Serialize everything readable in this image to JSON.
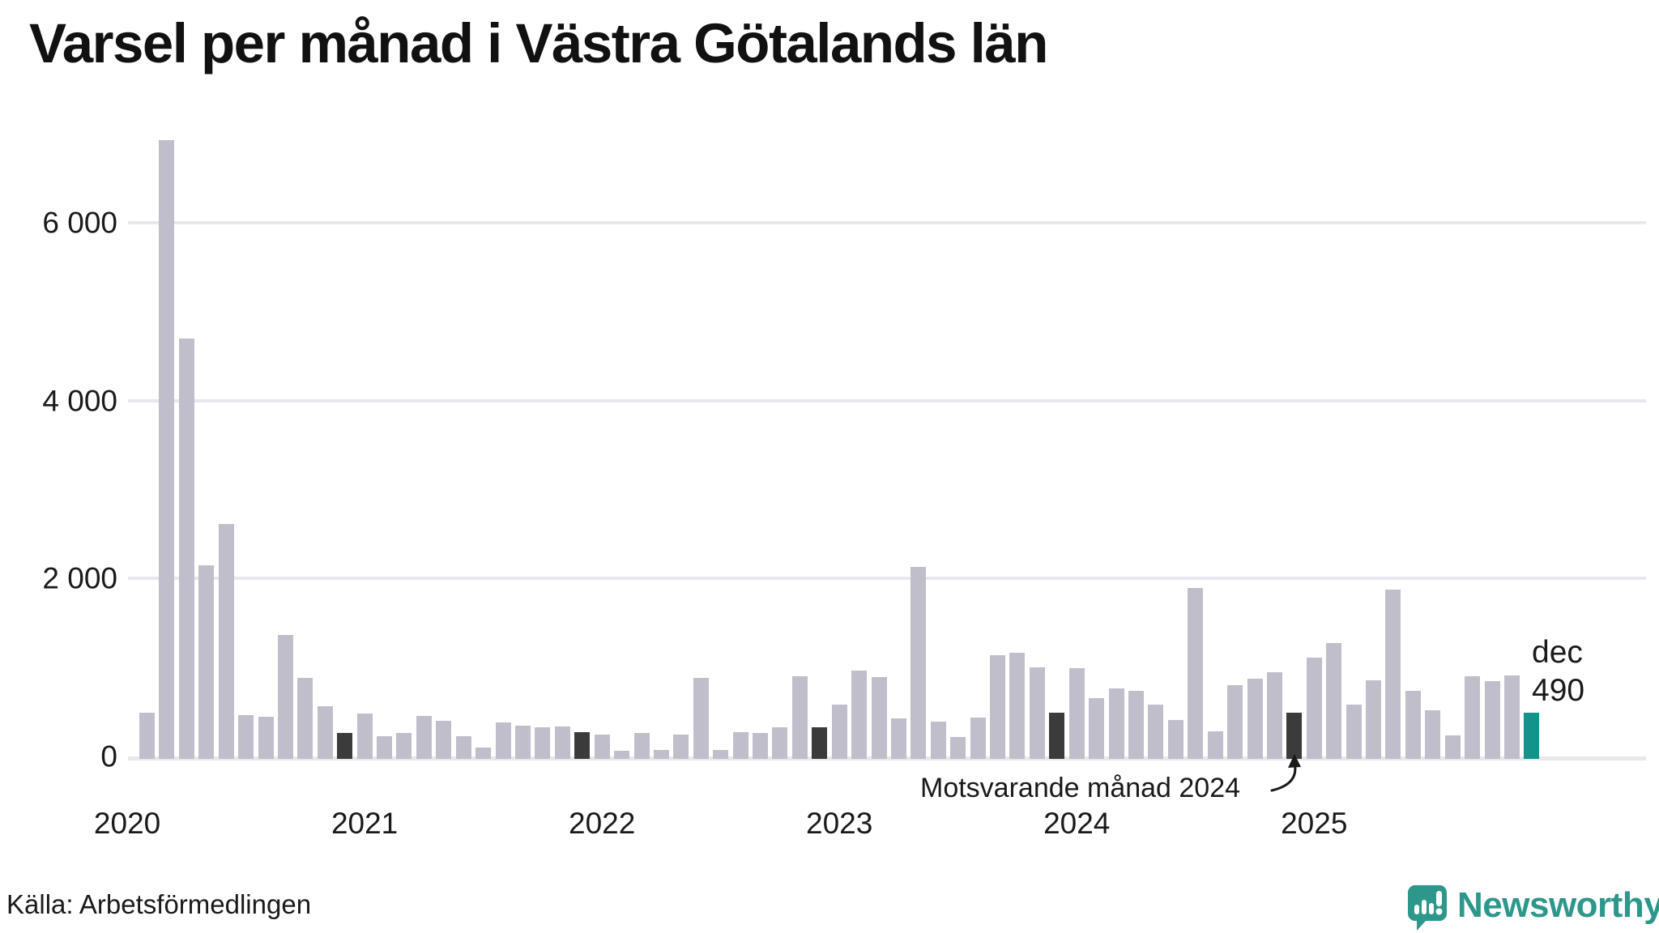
{
  "title": "Varsel per månad i Västra Götalands län",
  "source": "Källa: Arbetsförmedlingen",
  "brand": {
    "name": "Newsworthy"
  },
  "annotation": {
    "text": "Motsvarande månad 2024",
    "target_label": "dec 2024"
  },
  "highlight_label": {
    "month": "dec",
    "value": "490"
  },
  "colors": {
    "bar": "#c1becb",
    "compare": "#3b3b3b",
    "current": "#13948a",
    "brand": "#2d978b",
    "grid": "#e8e7ed",
    "text": "#1a1a1a"
  },
  "chart_data": {
    "type": "bar",
    "title": "Varsel per månad i Västra Götalands län",
    "xlabel": "",
    "ylabel": "",
    "grid": true,
    "legend": "none",
    "ylim": [
      0,
      7150
    ],
    "yticks": [
      0,
      2000,
      4000,
      6000
    ],
    "ytick_labels": [
      "0",
      "2 000",
      "4 000",
      "6 000"
    ],
    "x": [
      "feb 2020",
      "mar 2020",
      "apr 2020",
      "maj 2020",
      "jun 2020",
      "jul 2020",
      "aug 2020",
      "sep 2020",
      "okt 2020",
      "nov 2020",
      "dec 2020",
      "jan 2021",
      "feb 2021",
      "mar 2021",
      "apr 2021",
      "maj 2021",
      "jun 2021",
      "jul 2021",
      "aug 2021",
      "sep 2021",
      "okt 2021",
      "nov 2021",
      "dec 2021",
      "jan 2022",
      "feb 2022",
      "mar 2022",
      "apr 2022",
      "maj 2022",
      "jun 2022",
      "jul 2022",
      "aug 2022",
      "sep 2022",
      "okt 2022",
      "nov 2022",
      "dec 2022",
      "jan 2023",
      "feb 2023",
      "mar 2023",
      "apr 2023",
      "maj 2023",
      "jun 2023",
      "jul 2023",
      "aug 2023",
      "sep 2023",
      "okt 2023",
      "nov 2023",
      "dec 2023",
      "jan 2024",
      "feb 2024",
      "mar 2024",
      "apr 2024",
      "maj 2024",
      "jun 2024",
      "jul 2024",
      "aug 2024",
      "sep 2024",
      "okt 2024",
      "nov 2024",
      "dec 2024",
      "jan 2025",
      "feb 2025",
      "mar 2025",
      "apr 2025",
      "maj 2025",
      "jun 2025",
      "jul 2025",
      "aug 2025",
      "sep 2025",
      "okt 2025",
      "nov 2025",
      "dec 2025"
    ],
    "values": [
      490,
      6930,
      4700,
      2150,
      2615,
      465,
      450,
      1370,
      880,
      565,
      265,
      480,
      225,
      265,
      455,
      400,
      230,
      100,
      385,
      345,
      330,
      335,
      270,
      245,
      60,
      260,
      75,
      250,
      885,
      75,
      270,
      260,
      330,
      905,
      330,
      580,
      965,
      895,
      425,
      2130,
      395,
      220,
      435,
      1135,
      1170,
      1000,
      490,
      990,
      660,
      765,
      735,
      585,
      410,
      1895,
      280,
      805,
      870,
      945,
      495,
      1115,
      1275,
      580,
      860,
      1875,
      740,
      515,
      235,
      905,
      845,
      915,
      490
    ],
    "compare_indices": [
      10,
      22,
      34,
      46,
      58
    ],
    "current_index": 70,
    "year_ticks": [
      {
        "label": "2020",
        "index": -1
      },
      {
        "label": "2021",
        "index": 11
      },
      {
        "label": "2022",
        "index": 23
      },
      {
        "label": "2023",
        "index": 35
      },
      {
        "label": "2024",
        "index": 47
      },
      {
        "label": "2025",
        "index": 59
      }
    ]
  }
}
